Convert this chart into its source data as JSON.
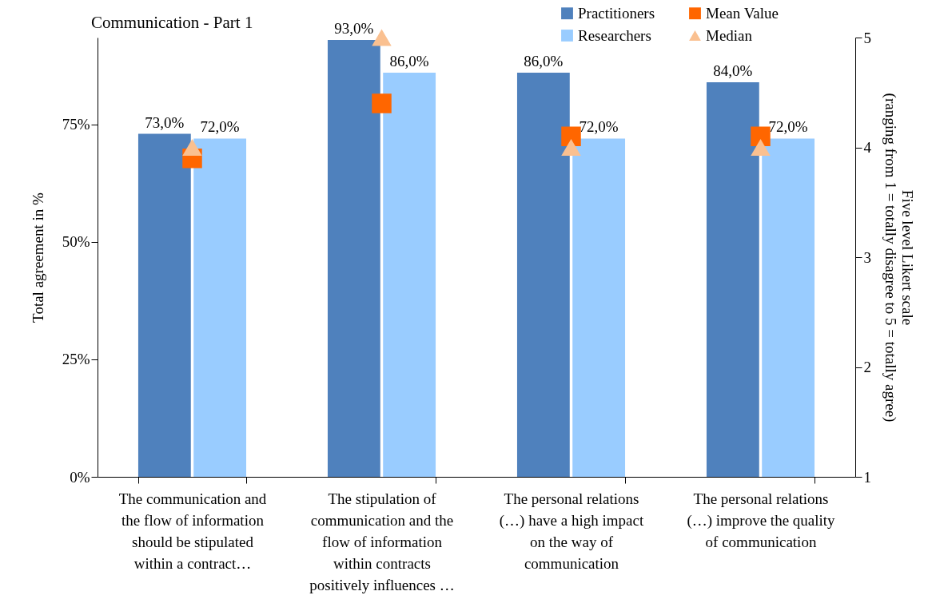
{
  "chart_data": {
    "type": "bar",
    "title": "Communication - Part 1",
    "categories": [
      "The communication and the flow of information should be stipulated within a contract…",
      "The stipulation of communication and the flow of information within contracts positively influences …",
      "The personal relations (…) have a high impact on the way of communication",
      "The personal relations (…) improve the quality of communication"
    ],
    "series": [
      {
        "name": "Practitioners",
        "color": "#4f81bd",
        "values": [
          73,
          93,
          86,
          84
        ],
        "value_labels": [
          "73,0%",
          "93,0%",
          "86,0%",
          "84,0%"
        ]
      },
      {
        "name": "Researchers",
        "color": "#99ccff",
        "values": [
          72,
          86,
          72,
          72
        ],
        "value_labels": [
          "72,0%",
          "86,0%",
          "72,0%",
          "72,0%"
        ]
      },
      {
        "name": "Mean Value",
        "type": "scatter",
        "axis": "y2",
        "marker": "square",
        "color": "#ff6600",
        "values": [
          3.9,
          4.4,
          4.1,
          4.1
        ]
      },
      {
        "name": "Median",
        "type": "scatter",
        "axis": "y2",
        "marker": "triangle",
        "color": "#fac090",
        "values": [
          4.0,
          5.0,
          4.0,
          4.0
        ]
      }
    ],
    "ylabel": "Total agreement in %",
    "y2label": "Five level Likert scale (ranging from 1 = totally disagree to 5 = totally agree)",
    "ylim": [
      0,
      93.5
    ],
    "yticks": [
      {
        "value": 0,
        "label": "0%"
      },
      {
        "value": 25,
        "label": "25%"
      },
      {
        "value": 50,
        "label": "50%"
      },
      {
        "value": 75,
        "label": "75%"
      }
    ],
    "y2lim": [
      1,
      5
    ],
    "y2ticks": [
      1,
      2,
      3,
      4,
      5
    ],
    "legend": "top right",
    "grid": false
  }
}
